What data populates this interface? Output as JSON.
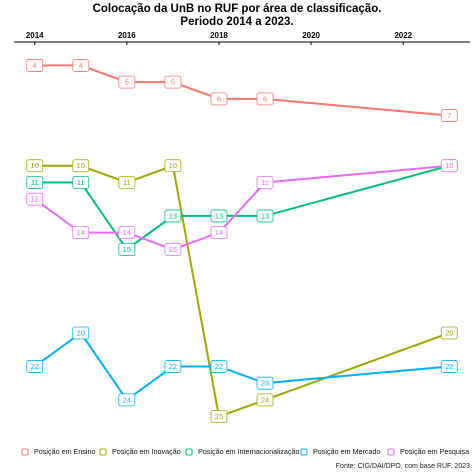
{
  "chart_data": {
    "type": "line",
    "title": "Colocação da UnB no RUF por área de classificação.",
    "subtitle": "Periodo 2014 a 2023.",
    "caption": "Fonte: CIG/DAI/DPO, com base RUF, 2023",
    "x": [
      2014,
      2015,
      2016,
      2017,
      2018,
      2019,
      2023
    ],
    "xlim": [
      2013.55,
      2023.45
    ],
    "xticks": [
      2014,
      2016,
      2018,
      2020,
      2022
    ],
    "ylim": [
      25.8,
      2.6
    ],
    "legend": "bottom",
    "series": [
      {
        "name": "Posição em Ensino",
        "color": "#F8766D",
        "values": [
          4,
          4,
          5,
          5,
          6,
          6,
          7
        ]
      },
      {
        "name": "Posição em Inovação",
        "color": "#A3A500",
        "values": [
          10,
          10,
          11,
          10,
          25,
          24,
          20
        ]
      },
      {
        "name": "Posição em Internacionalização",
        "color": "#00BF7D",
        "values": [
          11,
          11,
          15,
          13,
          13,
          13,
          10
        ]
      },
      {
        "name": "Posição em Mercado",
        "color": "#00B0F6",
        "values": [
          22,
          20,
          24,
          22,
          22,
          23,
          22
        ]
      },
      {
        "name": "Posição em Pesquisa",
        "color": "#E76BF3",
        "values": [
          12,
          14,
          14,
          15,
          14,
          11,
          10
        ]
      }
    ]
  }
}
